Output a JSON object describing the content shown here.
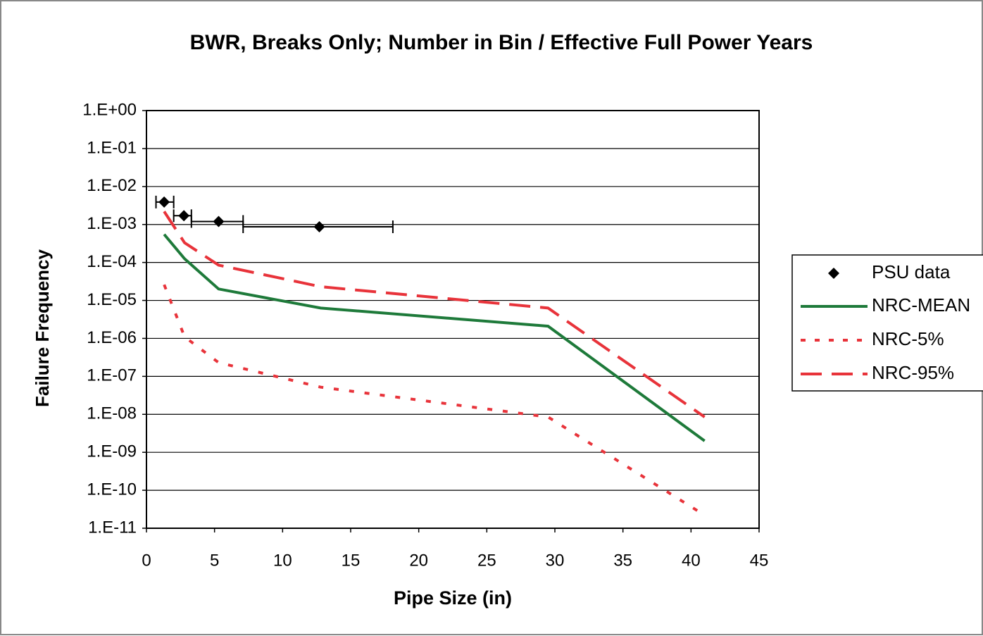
{
  "chart_data": {
    "type": "line",
    "title": "BWR, Breaks Only; Number in Bin / Effective Full Power Years",
    "xlabel": "Pipe Size (in)",
    "ylabel": "Failure Frequency",
    "xlim": [
      0,
      45
    ],
    "xticks": [
      0,
      5,
      10,
      15,
      20,
      25,
      30,
      35,
      40,
      45
    ],
    "ylim": [
      1e-11,
      1
    ],
    "yscale": "log",
    "yticks": [
      {
        "value": 1,
        "label": "1.E+00"
      },
      {
        "value": 0.1,
        "label": "1.E-01"
      },
      {
        "value": 0.01,
        "label": "1.E-02"
      },
      {
        "value": 0.001,
        "label": "1.E-03"
      },
      {
        "value": 0.0001,
        "label": "1.E-04"
      },
      {
        "value": 1e-05,
        "label": "1.E-05"
      },
      {
        "value": 1e-06,
        "label": "1.E-06"
      },
      {
        "value": 1e-07,
        "label": "1.E-07"
      },
      {
        "value": 1e-08,
        "label": "1.E-08"
      },
      {
        "value": 1e-09,
        "label": "1.E-09"
      },
      {
        "value": 1e-10,
        "label": "1.E-10"
      },
      {
        "value": 1e-11,
        "label": "1.E-11"
      }
    ],
    "grid": true,
    "legend": "right",
    "series": [
      {
        "name": "PSU data",
        "style": "scatter",
        "color": "#000000",
        "x": [
          1.3,
          2.75,
          5.3,
          12.7
        ],
        "values": [
          0.0039,
          0.0017,
          0.0012,
          0.00087
        ],
        "xlow": [
          0.7,
          2.0,
          3.3,
          7.1
        ],
        "xhigh": [
          2.0,
          3.3,
          7.1,
          18.1
        ]
      },
      {
        "name": "NRC-MEAN",
        "style": "solid",
        "color": "#1e7a3a",
        "x": [
          1.3,
          2.8,
          5.3,
          12.8,
          29.5,
          41
        ],
        "values": [
          0.00055,
          0.000125,
          2e-05,
          6.3e-06,
          2.1e-06,
          2e-09
        ]
      },
      {
        "name": "NRC-5%",
        "style": "dotted",
        "color": "#e8333a",
        "x": [
          1.3,
          2.8,
          5.3,
          12.8,
          29.5,
          41
        ],
        "values": [
          2.6e-05,
          1.1e-06,
          2.3e-07,
          5.2e-08,
          8.5e-09,
          2.2e-11
        ]
      },
      {
        "name": "NRC-95%",
        "style": "dashed",
        "color": "#e8333a",
        "x": [
          1.3,
          2.8,
          5.3,
          12.8,
          29.5,
          41
        ],
        "values": [
          0.0022,
          0.00033,
          8.5e-05,
          2.3e-05,
          6.3e-06,
          8.5e-09
        ]
      }
    ]
  }
}
